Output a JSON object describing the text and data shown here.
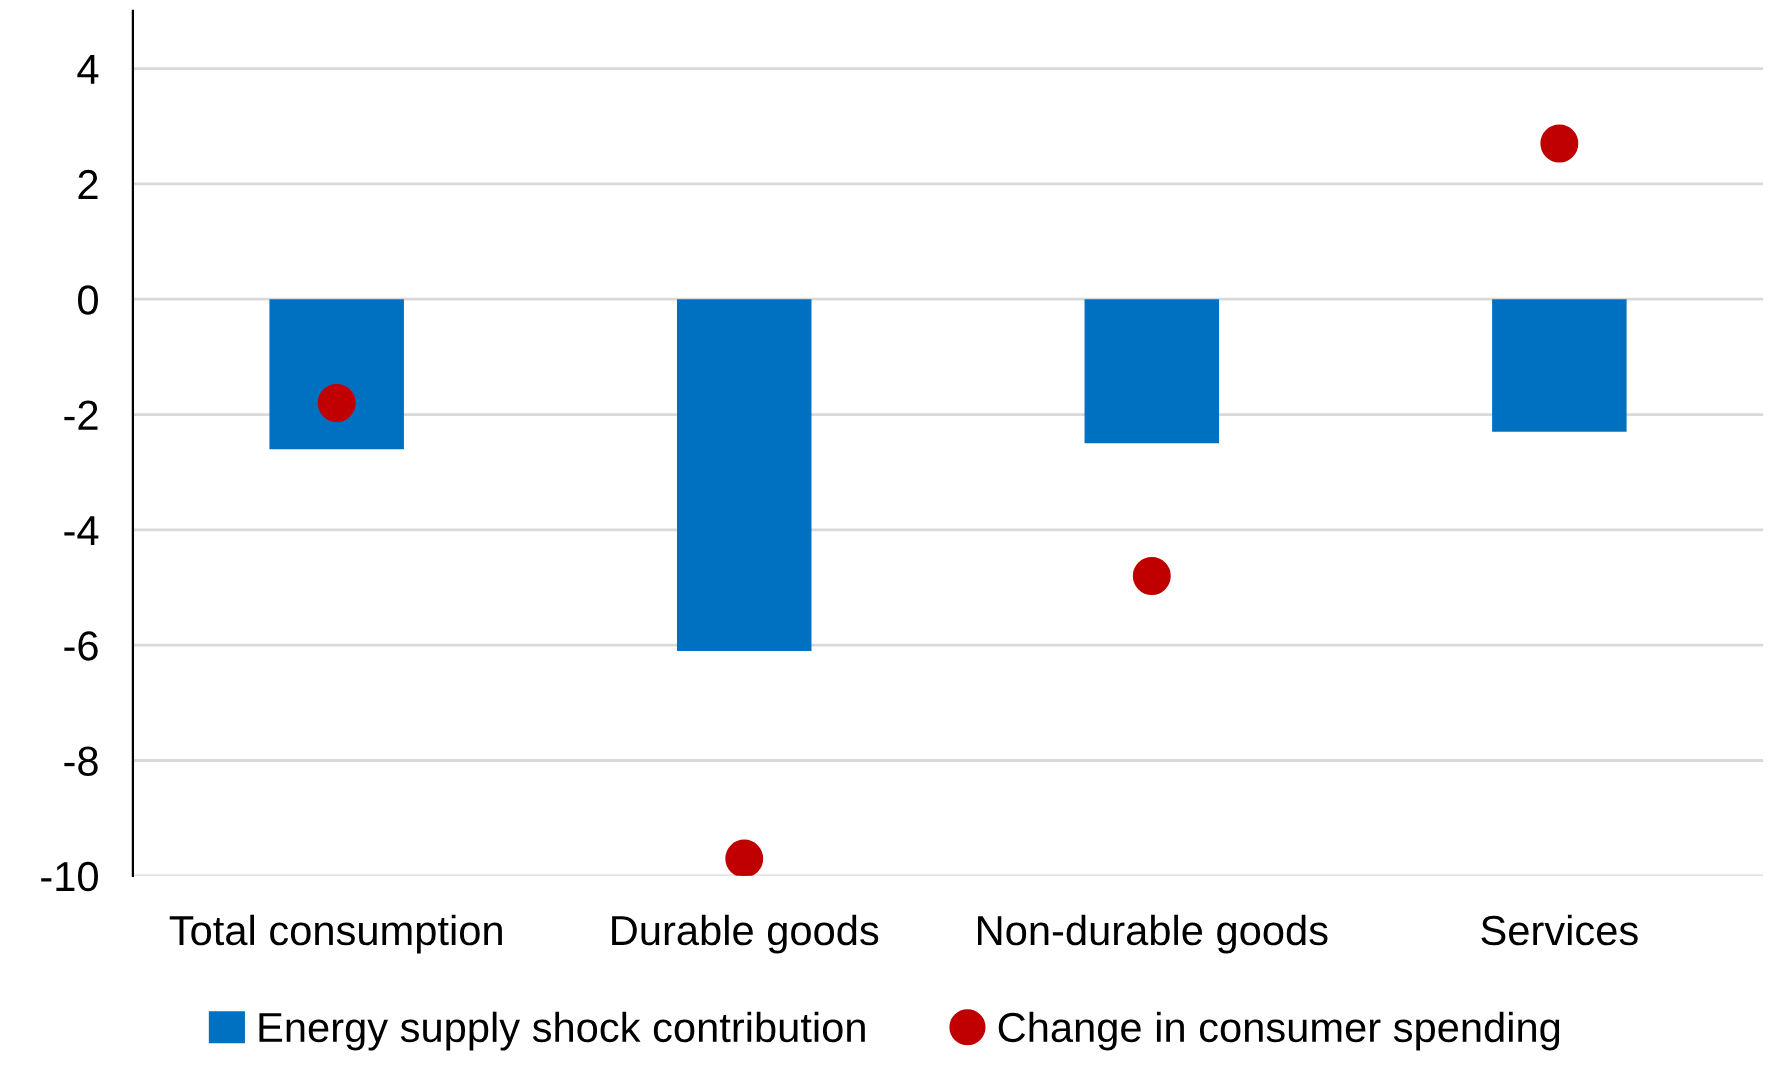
{
  "chart_data": {
    "type": "bar",
    "categories": [
      "Total consumption",
      "Durable goods",
      "Non-durable goods",
      "Services"
    ],
    "series": [
      {
        "name": "Energy supply shock contribution",
        "color": "#0070c0",
        "values": [
          -2.6,
          -6.1,
          -2.5,
          -2.3
        ]
      },
      {
        "name": "Change in consumer spending",
        "type": "scatter",
        "color": "#c00000",
        "values": [
          -1.8,
          -9.7,
          -4.8,
          2.7
        ]
      }
    ],
    "ylim": [
      -10,
      5
    ],
    "yticks": [
      -10,
      -8,
      -6,
      -4,
      -2,
      0,
      2,
      4
    ],
    "grid": "y",
    "legend": "bottom",
    "marker": "circle"
  }
}
